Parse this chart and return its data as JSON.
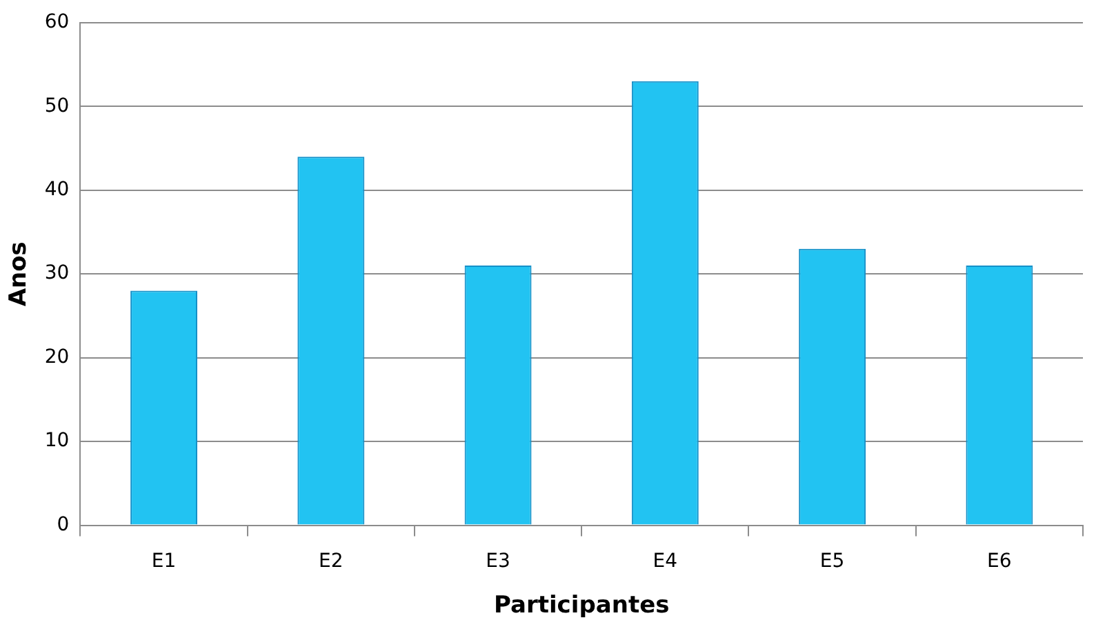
{
  "chart_data": {
    "type": "bar",
    "xlabel": "Participantes",
    "ylabel": "Anos",
    "categories": [
      "E1",
      "E2",
      "E3",
      "E4",
      "E5",
      "E6"
    ],
    "values": [
      28,
      44,
      31,
      53,
      33,
      31
    ],
    "color": "#22c3f2",
    "ylim": [
      0,
      60
    ],
    "yticks": [
      0,
      10,
      20,
      30,
      40,
      50,
      60
    ],
    "grid": "y",
    "legend": false
  }
}
